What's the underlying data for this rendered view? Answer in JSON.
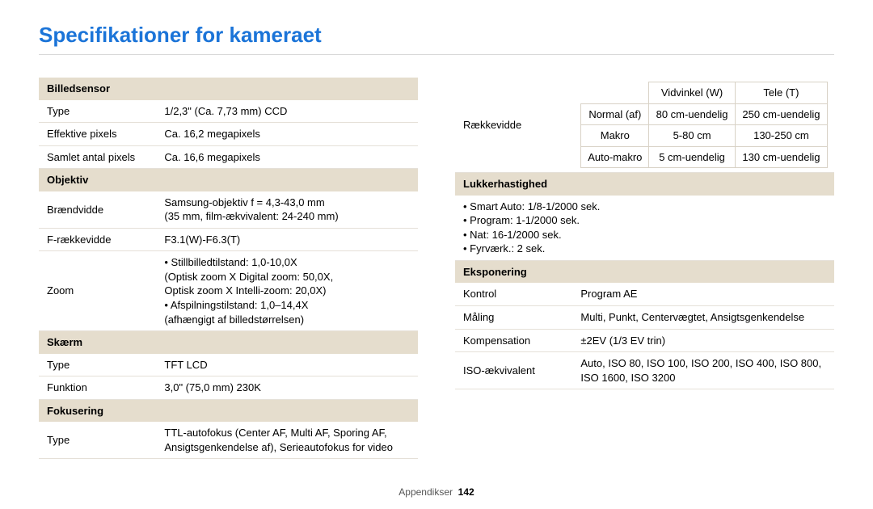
{
  "title": "Specifikationer for kameraet",
  "footer": {
    "label": "Appendikser",
    "page": "142"
  },
  "left": {
    "sections": [
      {
        "header": "Billedsensor",
        "rows": [
          {
            "key": "Type",
            "value": "1/2,3\" (Ca. 7,73 mm) CCD"
          },
          {
            "key": "Effektive pixels",
            "value": "Ca. 16,2 megapixels"
          },
          {
            "key": "Samlet antal pixels",
            "value": "Ca. 16,6 megapixels"
          }
        ]
      },
      {
        "header": "Objektiv",
        "rows": [
          {
            "key": "Brændvidde",
            "value": "Samsung-objektiv f = 4,3-43,0 mm\n(35 mm, film-ækvivalent: 24-240 mm)"
          },
          {
            "key": "F-rækkevidde",
            "value": "F3.1(W)-F6.3(T)"
          },
          {
            "key": "Zoom",
            "bullets": [
              "Stillbilledtilstand: 1,0-10,0X\n(Optisk zoom X Digital zoom: 50,0X,\nOptisk zoom X Intelli-zoom: 20,0X)",
              "Afspilningstilstand: 1,0–14,4X\n(afhængigt af billedstørrelsen)"
            ]
          }
        ]
      },
      {
        "header": "Skærm",
        "rows": [
          {
            "key": "Type",
            "value": "TFT LCD"
          },
          {
            "key": "Funktion",
            "value": "3,0\" (75,0 mm) 230K"
          }
        ]
      },
      {
        "header": "Fokusering",
        "rows": [
          {
            "key": "Type",
            "value": "TTL-autofokus (Center AF, Multi AF, Sporing AF, Ansigtsgenkendelse af), Serieautofokus for video"
          }
        ]
      }
    ]
  },
  "right": {
    "range": {
      "rowHeaderBlankColspan": 1,
      "key": "Rækkevidde",
      "cols": [
        "",
        "Vidvinkel (W)",
        "Tele (T)"
      ],
      "rows": [
        {
          "label": "Normal (af)",
          "w": "80 cm-uendelig",
          "t": "250 cm-uendelig"
        },
        {
          "label": "Makro",
          "w": "5-80 cm",
          "t": "130-250 cm"
        },
        {
          "label": "Auto-makro",
          "w": "5 cm-uendelig",
          "t": "130 cm-uendelig"
        }
      ]
    },
    "sections": [
      {
        "header": "Lukkerhastighed",
        "bulletsOnly": [
          "Smart Auto: 1/8-1/2000 sek.",
          "Program: 1-1/2000 sek.",
          "Nat: 16-1/2000 sek.",
          "Fyrværk.: 2 sek."
        ]
      },
      {
        "header": "Eksponering",
        "rows": [
          {
            "key": "Kontrol",
            "value": "Program AE"
          },
          {
            "key": "Måling",
            "value": "Multi, Punkt, Centervægtet, Ansigtsgenkendelse"
          },
          {
            "key": "Kompensation",
            "value": "±2EV (1/3 EV trin)"
          },
          {
            "key": "ISO-ækvivalent",
            "value": "Auto, ISO 80,  ISO 100, ISO 200, ISO 400, ISO 800, ISO 1600, ISO 3200"
          }
        ]
      }
    ]
  }
}
